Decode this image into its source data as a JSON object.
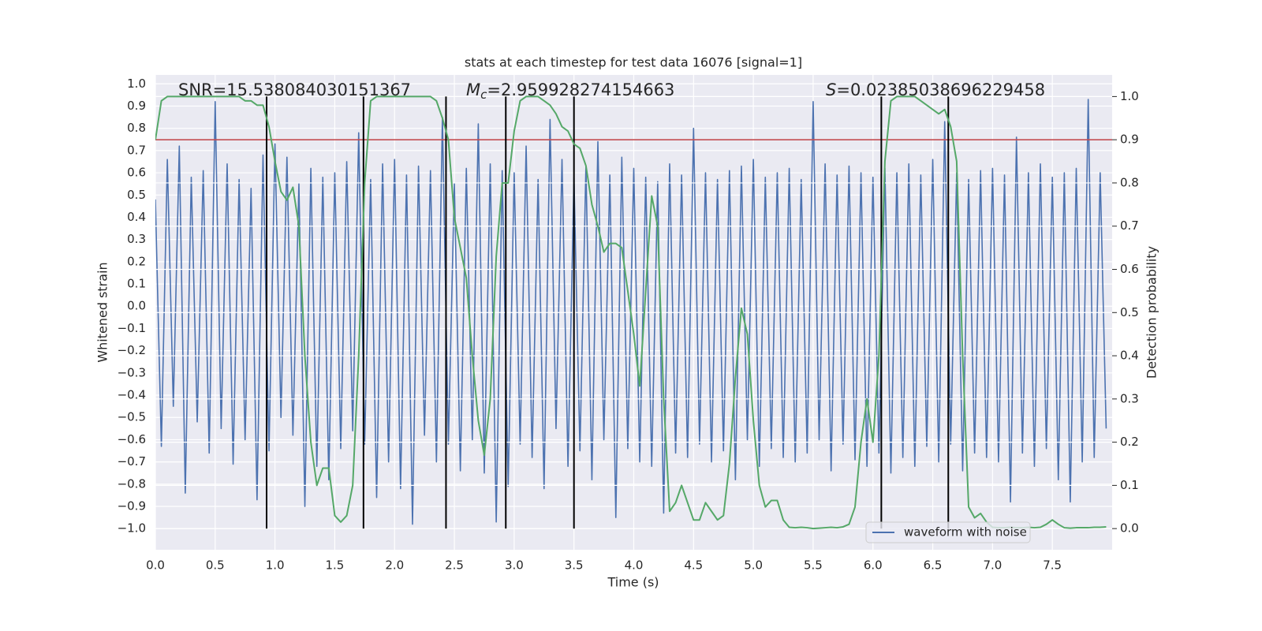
{
  "chart_data": {
    "type": "line",
    "title": "stats at each timestep for test data 16076 [signal=1]",
    "xlabel": "Time (s)",
    "ylabel": "Whitened strain",
    "y2label": "Detection probability",
    "grid": true,
    "legend": "lower right",
    "xlim": [
      0,
      8.0
    ],
    "ylim": [
      -1.095,
      1.04
    ],
    "y2lim": [
      -0.049,
      1.05
    ],
    "xticks": [
      {
        "value": 0,
        "label": "0.0"
      },
      {
        "value": 0.5,
        "label": "0.5"
      },
      {
        "value": 1,
        "label": "1.0"
      },
      {
        "value": 1.5,
        "label": "1.5"
      },
      {
        "value": 2,
        "label": "2.0"
      },
      {
        "value": 2.5,
        "label": "2.5"
      },
      {
        "value": 3,
        "label": "3.0"
      },
      {
        "value": 3.5,
        "label": "3.5"
      },
      {
        "value": 4,
        "label": "4.0"
      },
      {
        "value": 4.5,
        "label": "4.5"
      },
      {
        "value": 5,
        "label": "5.0"
      },
      {
        "value": 5.5,
        "label": "5.5"
      },
      {
        "value": 6,
        "label": "6.0"
      },
      {
        "value": 6.5,
        "label": "6.5"
      },
      {
        "value": 7,
        "label": "7.0"
      },
      {
        "value": 7.5,
        "label": "7.5"
      }
    ],
    "yticks": [
      {
        "value": -1,
        "label": "−1.0"
      },
      {
        "value": -0.9,
        "label": "−0.9"
      },
      {
        "value": -0.8,
        "label": "−0.8"
      },
      {
        "value": -0.7,
        "label": "−0.7"
      },
      {
        "value": -0.6,
        "label": "−0.6"
      },
      {
        "value": -0.5,
        "label": "−0.5"
      },
      {
        "value": -0.4,
        "label": "−0.4"
      },
      {
        "value": -0.3,
        "label": "−0.3"
      },
      {
        "value": -0.2,
        "label": "−0.2"
      },
      {
        "value": -0.1,
        "label": "−0.1"
      },
      {
        "value": 0,
        "label": "0.0"
      },
      {
        "value": 0.1,
        "label": "0.1"
      },
      {
        "value": 0.2,
        "label": "0.2"
      },
      {
        "value": 0.3,
        "label": "0.3"
      },
      {
        "value": 0.4,
        "label": "0.4"
      },
      {
        "value": 0.5,
        "label": "0.5"
      },
      {
        "value": 0.6,
        "label": "0.6"
      },
      {
        "value": 0.7,
        "label": "0.7"
      },
      {
        "value": 0.8,
        "label": "0.8"
      },
      {
        "value": 0.9,
        "label": "0.9"
      },
      {
        "value": 1,
        "label": "1.0"
      }
    ],
    "y2ticks": [
      {
        "value": 0,
        "label": "0.0"
      },
      {
        "value": 0.1,
        "label": "0.1"
      },
      {
        "value": 0.2,
        "label": "0.2"
      },
      {
        "value": 0.3,
        "label": "0.3"
      },
      {
        "value": 0.4,
        "label": "0.4"
      },
      {
        "value": 0.5,
        "label": "0.5"
      },
      {
        "value": 0.6,
        "label": "0.6"
      },
      {
        "value": 0.7,
        "label": "0.7"
      },
      {
        "value": 0.8,
        "label": "0.8"
      },
      {
        "value": 0.9,
        "label": "0.9"
      },
      {
        "value": 1,
        "label": "1.0"
      }
    ],
    "x": [
      0,
      0.05,
      0.1,
      0.15,
      0.2,
      0.25,
      0.3,
      0.35,
      0.4,
      0.45,
      0.5,
      0.55,
      0.6,
      0.65,
      0.7,
      0.75,
      0.8,
      0.85,
      0.9,
      0.95,
      1,
      1.05,
      1.1,
      1.15,
      1.2,
      1.25,
      1.3,
      1.35,
      1.4,
      1.45,
      1.5,
      1.55,
      1.6,
      1.65,
      1.7,
      1.75,
      1.8,
      1.85,
      1.9,
      1.95,
      2,
      2.05,
      2.1,
      2.15,
      2.2,
      2.25,
      2.3,
      2.35,
      2.4,
      2.45,
      2.5,
      2.55,
      2.6,
      2.65,
      2.7,
      2.75,
      2.8,
      2.85,
      2.9,
      2.95,
      3,
      3.05,
      3.1,
      3.15,
      3.2,
      3.25,
      3.3,
      3.35,
      3.4,
      3.45,
      3.5,
      3.55,
      3.6,
      3.65,
      3.7,
      3.75,
      3.8,
      3.85,
      3.9,
      3.95,
      4,
      4.05,
      4.1,
      4.15,
      4.2,
      4.25,
      4.3,
      4.35,
      4.4,
      4.45,
      4.5,
      4.55,
      4.6,
      4.65,
      4.7,
      4.75,
      4.8,
      4.85,
      4.9,
      4.95,
      5,
      5.05,
      5.1,
      5.15,
      5.2,
      5.25,
      5.3,
      5.35,
      5.4,
      5.45,
      5.5,
      5.55,
      5.6,
      5.65,
      5.7,
      5.75,
      5.8,
      5.85,
      5.9,
      5.95,
      6,
      6.05,
      6.1,
      6.15,
      6.2,
      6.25,
      6.3,
      6.35,
      6.4,
      6.45,
      6.5,
      6.55,
      6.6,
      6.65,
      6.7,
      6.75,
      6.8,
      6.85,
      6.9,
      6.95,
      7,
      7.05,
      7.1,
      7.15,
      7.2,
      7.25,
      7.3,
      7.35,
      7.4,
      7.45,
      7.5,
      7.55,
      7.6,
      7.65,
      7.7,
      7.75,
      7.8,
      7.85,
      7.9,
      7.95
    ],
    "series": [
      {
        "name": "waveform with noise",
        "color": "#4c72b0",
        "axis": "y",
        "values": [
          0.48,
          -0.63,
          0.66,
          -0.45,
          0.72,
          -0.84,
          0.58,
          -0.52,
          0.61,
          -0.66,
          0.92,
          -0.55,
          0.64,
          -0.71,
          0.57,
          -0.6,
          0.53,
          -0.87,
          0.68,
          -0.65,
          0.73,
          -0.5,
          0.67,
          -0.58,
          0.55,
          -0.9,
          0.62,
          -0.72,
          0.58,
          -0.78,
          0.6,
          -0.64,
          0.65,
          -0.56,
          0.78,
          -0.62,
          0.57,
          -0.86,
          0.64,
          -0.7,
          0.66,
          -0.82,
          0.59,
          -0.98,
          0.63,
          -0.58,
          0.61,
          -0.7,
          0.85,
          -0.62,
          0.55,
          -0.74,
          0.62,
          -0.6,
          0.82,
          -0.75,
          0.64,
          -0.97,
          0.61,
          -0.81,
          0.6,
          -0.62,
          0.72,
          -0.68,
          0.57,
          -0.82,
          0.84,
          -0.55,
          0.66,
          -0.72,
          0.58,
          -0.65,
          0.63,
          -0.78,
          0.74,
          -0.6,
          0.59,
          -0.95,
          0.67,
          -0.64,
          0.62,
          -0.7,
          0.58,
          -0.72,
          0.56,
          -0.93,
          0.64,
          -0.66,
          0.59,
          -0.68,
          0.8,
          -0.62,
          0.6,
          -0.7,
          0.57,
          -0.65,
          0.61,
          -0.78,
          0.63,
          -0.6,
          0.66,
          -0.72,
          0.58,
          -0.64,
          0.6,
          -0.68,
          0.62,
          -0.7,
          0.57,
          -0.66,
          0.92,
          -0.6,
          0.64,
          -0.74,
          0.59,
          -0.62,
          0.63,
          -0.69,
          0.6,
          -0.72,
          0.58,
          -0.66,
          0.62,
          -0.75,
          0.6,
          -0.68,
          0.64,
          -0.72,
          0.59,
          -0.63,
          0.66,
          -0.7,
          0.83,
          -0.62,
          0.6,
          -0.74,
          0.57,
          -0.66,
          0.61,
          -0.68,
          0.62,
          -0.7,
          0.59,
          -0.88,
          0.76,
          -0.66,
          0.6,
          -0.72,
          0.64,
          -0.64,
          0.58,
          -0.78,
          0.6,
          -0.88,
          0.62,
          -0.7,
          0.93,
          -0.68,
          0.6,
          -0.55
        ]
      },
      {
        "color": "#55a868",
        "axis": "y2",
        "values": [
          0.9,
          0.99,
          1.0,
          1.0,
          1.0,
          1.0,
          1.0,
          1.0,
          1.0,
          1.0,
          1.0,
          1.0,
          1.0,
          1.0,
          1.0,
          0.99,
          0.99,
          0.98,
          0.98,
          0.93,
          0.85,
          0.78,
          0.76,
          0.79,
          0.7,
          0.4,
          0.2,
          0.1,
          0.14,
          0.14,
          0.03,
          0.015,
          0.03,
          0.1,
          0.4,
          0.8,
          0.99,
          1.0,
          1.0,
          1.0,
          1.0,
          1.0,
          1.0,
          1.0,
          1.0,
          1.0,
          1.0,
          0.99,
          0.95,
          0.9,
          0.72,
          0.65,
          0.58,
          0.4,
          0.25,
          0.17,
          0.3,
          0.63,
          0.8,
          0.8,
          0.92,
          0.99,
          1.0,
          1.0,
          1.0,
          0.99,
          0.98,
          0.96,
          0.93,
          0.92,
          0.89,
          0.88,
          0.84,
          0.75,
          0.7,
          0.64,
          0.66,
          0.66,
          0.65,
          0.55,
          0.45,
          0.33,
          0.55,
          0.77,
          0.7,
          0.3,
          0.04,
          0.06,
          0.1,
          0.06,
          0.02,
          0.02,
          0.06,
          0.04,
          0.02,
          0.03,
          0.15,
          0.35,
          0.51,
          0.45,
          0.25,
          0.1,
          0.05,
          0.065,
          0.065,
          0.02,
          0.003,
          0.002,
          0.003,
          0.002,
          0.0,
          0.001,
          0.002,
          0.003,
          0.002,
          0.004,
          0.01,
          0.05,
          0.2,
          0.3,
          0.2,
          0.4,
          0.85,
          0.99,
          1.0,
          1.0,
          1.0,
          1.0,
          0.99,
          0.98,
          0.97,
          0.96,
          0.97,
          0.93,
          0.85,
          0.4,
          0.05,
          0.025,
          0.035,
          0.015,
          0.003,
          0.002,
          0.002,
          0.003,
          0.002,
          0.002,
          0.003,
          0.002,
          0.003,
          0.01,
          0.02,
          0.01,
          0.002,
          0.001,
          0.002,
          0.002,
          0.002,
          0.003,
          0.003,
          0.004
        ]
      }
    ],
    "hline": {
      "value": 0.9,
      "axis": "y2",
      "color": "#c44e52"
    },
    "vlines": {
      "x": [
        0.93,
        1.74,
        2.43,
        2.93,
        3.5,
        6.07,
        6.63
      ],
      "ymin": 0,
      "ymax": 1,
      "axis": "y2",
      "color": "#000000"
    },
    "annotations": [
      {
        "parts": [
          {
            "text": "SNR=15.538084030151367"
          }
        ]
      },
      {
        "parts": [
          {
            "text": "M",
            "style": "italic"
          },
          {
            "text": "c",
            "style": "sub"
          },
          {
            "text": "=2.959928274154663"
          }
        ]
      },
      {
        "parts": [
          {
            "text": "S",
            "style": "italic"
          },
          {
            "text": "=0.02385038696229458"
          }
        ]
      }
    ]
  }
}
